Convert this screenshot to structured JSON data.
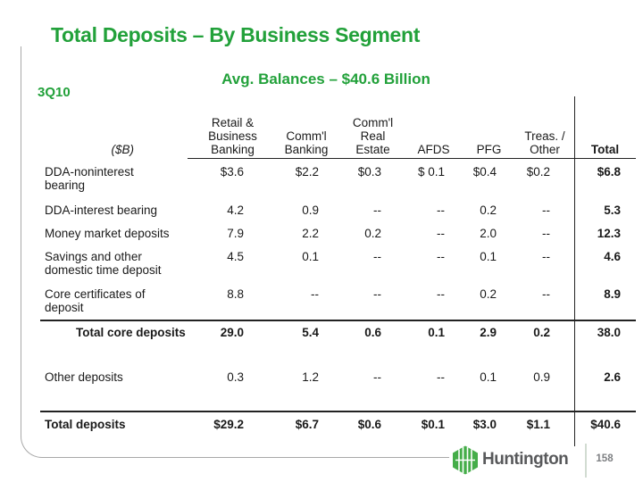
{
  "colors": {
    "green": "#22a13a",
    "logo_green": "#45ad49",
    "text": "#1a1a1a",
    "footer_gray": "#58595b"
  },
  "header": {
    "title": "Total Deposits – By Business Segment",
    "subtitle": "Avg. Balances – $40.6 Billion",
    "quarter": "3Q10"
  },
  "table": {
    "unit_label": "($B)",
    "columns": [
      "Retail &\nBusiness\nBanking",
      "Comm'l\nBanking",
      "Comm'l\nReal\nEstate",
      "AFDS",
      "PFG",
      "Treas. /\nOther",
      "Total"
    ],
    "rows": [
      {
        "label": "DDA-noninterest\nbearing",
        "values": [
          "$3.6",
          "$2.2",
          "$0.3",
          "$ 0.1",
          "$0.4",
          "$0.2",
          "$6.8"
        ],
        "bold": false,
        "indent": false
      },
      {
        "label": "DDA-interest bearing",
        "values": [
          "4.2",
          "0.9",
          "--",
          "--",
          "0.2",
          "--",
          "5.3"
        ],
        "bold": false,
        "indent": false
      },
      {
        "label": "Money market deposits",
        "values": [
          "7.9",
          "2.2",
          "0.2",
          "--",
          "2.0",
          "--",
          "12.3"
        ],
        "bold": false,
        "indent": false
      },
      {
        "label": "Savings and other\ndomestic time deposit",
        "values": [
          "4.5",
          "0.1",
          "--",
          "--",
          "0.1",
          "--",
          "4.6"
        ],
        "bold": false,
        "indent": false
      },
      {
        "label": "Core certificates of\ndeposit",
        "values": [
          "8.8",
          "--",
          "--",
          "--",
          "0.2",
          "--",
          "8.9"
        ],
        "bold": false,
        "indent": false
      },
      {
        "label": "Total core deposits",
        "values": [
          "29.0",
          "5.4",
          "0.6",
          "0.1",
          "2.9",
          "0.2",
          "38.0"
        ],
        "bold": true,
        "indent": true
      },
      {
        "label": "Other deposits",
        "values": [
          "0.3",
          "1.2",
          "--",
          "--",
          "0.1",
          "0.9",
          "2.6"
        ],
        "bold": false,
        "indent": false
      },
      {
        "label": "Total deposits",
        "values": [
          "$29.2",
          "$6.7",
          "$0.6",
          "$0.1",
          "$3.0",
          "$1.1",
          "$40.6"
        ],
        "bold": true,
        "indent": false
      }
    ]
  },
  "footer": {
    "brand": "Huntington",
    "page_number": "158"
  }
}
